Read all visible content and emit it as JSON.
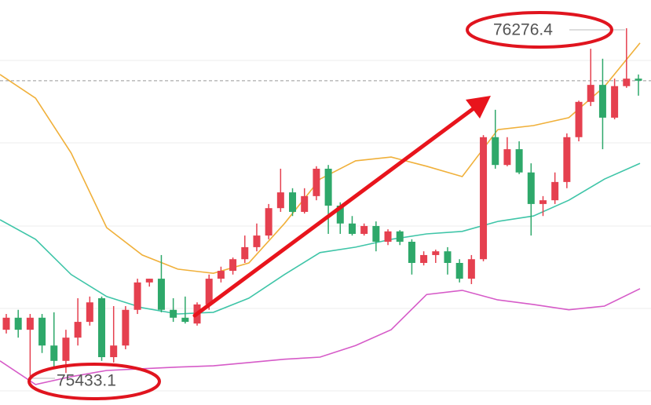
{
  "chart_data": {
    "type": "candlestick",
    "ylim": [
      75368.7,
      76344.5
    ],
    "up_color": "#e5404f",
    "down_color": "#2ea86a",
    "candles": [
      [
        75550,
        75588,
        75541,
        75579
      ],
      [
        75579,
        75598,
        75531,
        75550
      ],
      [
        75550,
        75588,
        75433.1,
        75579
      ],
      [
        75579,
        75588,
        75494,
        75512
      ],
      [
        75512,
        75592,
        75456,
        75475
      ],
      [
        75475,
        75550,
        75446,
        75531
      ],
      [
        75531,
        75626,
        75512,
        75569
      ],
      [
        75569,
        75630,
        75560,
        75616
      ],
      [
        75626,
        75630,
        75475,
        75484
      ],
      [
        75484,
        75607,
        75471,
        75512
      ],
      [
        75512,
        75607,
        75503,
        75598
      ],
      [
        75598,
        75673,
        75588,
        75664
      ],
      [
        75664,
        75673,
        75654,
        75673
      ],
      [
        75673,
        75730,
        75592,
        75598
      ],
      [
        75598,
        75626,
        75569,
        75579
      ],
      [
        75579,
        75630,
        75565,
        75569
      ],
      [
        75565,
        75616,
        75560,
        75611
      ],
      [
        75611,
        75683,
        75598,
        75673
      ],
      [
        75673,
        75702,
        75664,
        75692
      ],
      [
        75692,
        75724,
        75683,
        75720
      ],
      [
        75720,
        75777,
        75711,
        75749
      ],
      [
        75749,
        75806,
        75739,
        75777
      ],
      [
        75777,
        75853,
        75768,
        75843
      ],
      [
        75843,
        75938,
        75834,
        75881
      ],
      [
        75881,
        75891,
        75824,
        75834
      ],
      [
        75834,
        75891,
        75830,
        75872
      ],
      [
        75872,
        75944,
        75862,
        75938
      ],
      [
        75938,
        75947,
        75781,
        75849
      ],
      [
        75849,
        75857,
        75781,
        75806
      ],
      [
        75806,
        75824,
        75777,
        75781
      ],
      [
        75781,
        75806,
        75777,
        75800
      ],
      [
        75800,
        75811,
        75739,
        75762
      ],
      [
        75762,
        75792,
        75754,
        75787
      ],
      [
        75787,
        75790,
        75754,
        75762
      ],
      [
        75762,
        75768,
        75683,
        75711
      ],
      [
        75711,
        75739,
        75705,
        75730
      ],
      [
        75730,
        75743,
        75711,
        75739
      ],
      [
        75739,
        75749,
        75683,
        75711
      ],
      [
        75711,
        75720,
        75664,
        75673
      ],
      [
        75673,
        75730,
        75660,
        75720
      ],
      [
        75720,
        76019,
        75715,
        76014
      ],
      [
        76014,
        76080,
        75938,
        75947
      ],
      [
        75947,
        76014,
        75944,
        75985
      ],
      [
        75985,
        76004,
        75925,
        75929
      ],
      [
        75929,
        75951,
        75777,
        75853
      ],
      [
        75853,
        75872,
        75824,
        75862
      ],
      [
        75862,
        75929,
        75853,
        75906
      ],
      [
        75906,
        76023,
        75891,
        76014
      ],
      [
        76014,
        76102,
        76004,
        76099
      ],
      [
        76099,
        76227,
        76089,
        76140
      ],
      [
        76140,
        76203,
        75985,
        76061
      ],
      [
        76061,
        76155,
        76057,
        76137
      ],
      [
        76137,
        76276.4,
        76133,
        76155
      ],
      [
        76155,
        76165,
        76114,
        76150
      ]
    ],
    "series": [
      {
        "color": "#f0b03a",
        "values": [
          76165,
          76108,
          75976,
          75796,
          75730,
          75696,
          75686,
          75711,
          75806,
          75913,
          75957,
          75966,
          75944,
          75919,
          76032,
          76042,
          76061,
          76136,
          76241
        ]
      },
      {
        "color": "#3fc5a8",
        "values": [
          75815,
          75768,
          75683,
          75630,
          75603,
          75588,
          75592,
          75626,
          75683,
          75736,
          75749,
          75768,
          75781,
          75787,
          75811,
          75824,
          75862,
          75913,
          75951
        ]
      },
      {
        "color": "#d65bc8",
        "values": [
          75475,
          75418,
          75437,
          75452,
          75456,
          75460,
          75463,
          75471,
          75479,
          75484,
          75512,
          75550,
          75635,
          75645,
          75622,
          75611,
          75598,
          75607,
          75649
        ]
      }
    ]
  }
}
